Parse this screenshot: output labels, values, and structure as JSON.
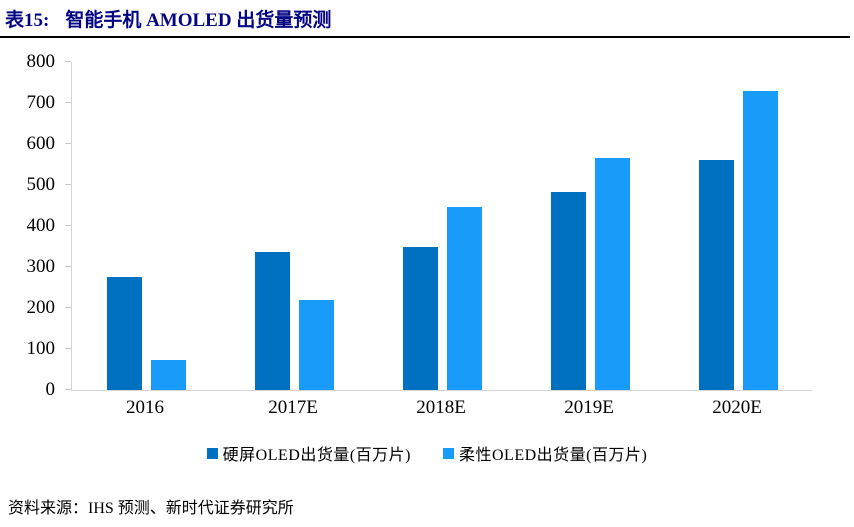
{
  "header": {
    "tag": "表15:",
    "title": "智能手机 AMOLED 出货量预测"
  },
  "chart_data": {
    "type": "bar",
    "title": "智能手机 AMOLED 出货量预测",
    "categories": [
      "2016",
      "2017E",
      "2018E",
      "2019E",
      "2020E"
    ],
    "series": [
      {
        "name": "硬屏OLED出货量(百万片)",
        "color": "#0070C0",
        "values": [
          275,
          337,
          348,
          483,
          562
        ]
      },
      {
        "name": "柔性OLED出货量(百万片)",
        "color": "#199BFA",
        "values": [
          73,
          220,
          447,
          565,
          730
        ]
      }
    ],
    "xlabel": "",
    "ylabel": "",
    "ylim": [
      0,
      800
    ],
    "y_ticks": [
      0,
      100,
      200,
      300,
      400,
      500,
      600,
      700,
      800
    ],
    "grid": false,
    "legend_position": "bottom"
  },
  "footer": {
    "source": "资料来源：IHS 预测、新时代证券研究所"
  },
  "colors": {
    "title_text": "#050583",
    "axis_line": "#d5d5d5",
    "header_rule": "#000000"
  }
}
